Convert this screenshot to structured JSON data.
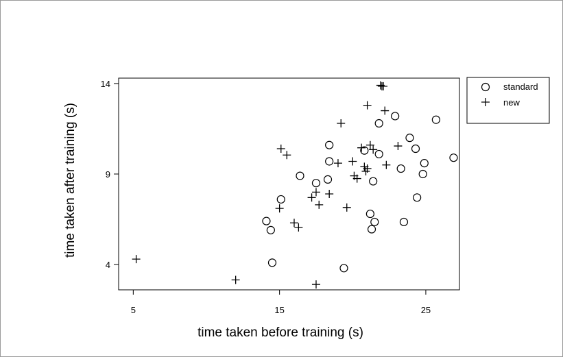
{
  "chart_data": {
    "type": "scatter",
    "title": "",
    "xlabel": "time taken before training (s)",
    "ylabel": "time taken after training (s)",
    "xlim": [
      4,
      27.3
    ],
    "ylim": [
      2.6,
      14.3
    ],
    "xticks": [
      5,
      15,
      25
    ],
    "yticks": [
      4,
      9,
      14
    ],
    "xtick_labels": [
      "5",
      "15",
      "25"
    ],
    "ytick_labels": [
      "4",
      "9",
      "14"
    ],
    "grid": false,
    "legend_position": "right",
    "series": [
      {
        "name": "standard",
        "marker": "circle",
        "points": [
          [
            14.1,
            6.4
          ],
          [
            14.4,
            5.9
          ],
          [
            14.5,
            4.1
          ],
          [
            15.1,
            7.6
          ],
          [
            16.4,
            8.9
          ],
          [
            17.5,
            8.5
          ],
          [
            18.3,
            8.7
          ],
          [
            18.4,
            9.7
          ],
          [
            18.4,
            10.6
          ],
          [
            19.4,
            3.8
          ],
          [
            20.8,
            10.3
          ],
          [
            21.2,
            6.8
          ],
          [
            21.3,
            5.95
          ],
          [
            21.4,
            8.6
          ],
          [
            21.5,
            6.35
          ],
          [
            21.8,
            11.8
          ],
          [
            21.8,
            10.1
          ],
          [
            22.9,
            12.2
          ],
          [
            23.3,
            9.3
          ],
          [
            23.5,
            6.35
          ],
          [
            23.9,
            11.0
          ],
          [
            24.3,
            10.4
          ],
          [
            24.4,
            7.7
          ],
          [
            24.8,
            9.0
          ],
          [
            24.9,
            9.6
          ],
          [
            25.7,
            12.0
          ],
          [
            26.9,
            9.9
          ]
        ]
      },
      {
        "name": "new",
        "marker": "plus",
        "points": [
          [
            5.2,
            4.3
          ],
          [
            12.0,
            3.15
          ],
          [
            15.0,
            7.1
          ],
          [
            15.1,
            10.4
          ],
          [
            15.5,
            10.05
          ],
          [
            16.0,
            6.3
          ],
          [
            16.3,
            6.05
          ],
          [
            17.2,
            7.7
          ],
          [
            17.5,
            8.0
          ],
          [
            17.5,
            2.9
          ],
          [
            17.7,
            7.3
          ],
          [
            18.4,
            7.9
          ],
          [
            19.0,
            9.6
          ],
          [
            19.2,
            11.8
          ],
          [
            19.6,
            7.15
          ],
          [
            20.0,
            9.7
          ],
          [
            20.1,
            8.9
          ],
          [
            20.3,
            8.75
          ],
          [
            20.6,
            10.45
          ],
          [
            20.8,
            9.4
          ],
          [
            20.9,
            9.15
          ],
          [
            21.0,
            12.8
          ],
          [
            21.0,
            9.3
          ],
          [
            21.2,
            10.6
          ],
          [
            21.4,
            10.35
          ],
          [
            21.9,
            13.9
          ],
          [
            22.0,
            13.85
          ],
          [
            22.1,
            13.85
          ],
          [
            22.2,
            12.5
          ],
          [
            22.3,
            9.5
          ],
          [
            23.1,
            10.55
          ]
        ]
      }
    ]
  }
}
